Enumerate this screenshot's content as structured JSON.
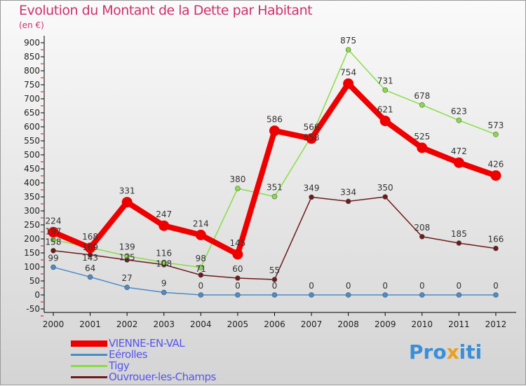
{
  "chart_data": {
    "type": "line",
    "title": "Evolution du Montant de la Dette par Habitant",
    "ylabel": "(en €)",
    "x": [
      "2000",
      "2001",
      "2002",
      "2003",
      "2004",
      "2005",
      "2006",
      "2007",
      "2008",
      "2009",
      "2010",
      "2011",
      "2012"
    ],
    "ylim": [
      -50,
      900
    ],
    "yticks": [
      -50,
      0,
      50,
      100,
      150,
      200,
      250,
      300,
      350,
      400,
      450,
      500,
      550,
      600,
      650,
      700,
      750,
      800,
      850,
      900
    ],
    "legend": "bottom-left",
    "series": [
      {
        "name": "VIENNE-EN-VAL",
        "color": "#ee0000",
        "values": [
          224,
          168,
          331,
          247,
          214,
          145,
          586,
          558,
          754,
          621,
          525,
          472,
          426
        ]
      },
      {
        "name": "Eérolles",
        "color": "#4a8cc8",
        "values": [
          99,
          64,
          27,
          9,
          0,
          0,
          0,
          0,
          0,
          0,
          0,
          0,
          0
        ]
      },
      {
        "name": "Tigy",
        "color": "#88dd44",
        "values": [
          197,
          169,
          139,
          116,
          98,
          380,
          351,
          566,
          875,
          731,
          678,
          623,
          573
        ]
      },
      {
        "name": "Ouvrouer-les-Champs",
        "color": "#6e1a1a",
        "values": [
          158,
          143,
          125,
          108,
          71,
          60,
          55,
          349,
          334,
          350,
          208,
          185,
          166
        ]
      }
    ]
  },
  "logo": "Proxiti"
}
